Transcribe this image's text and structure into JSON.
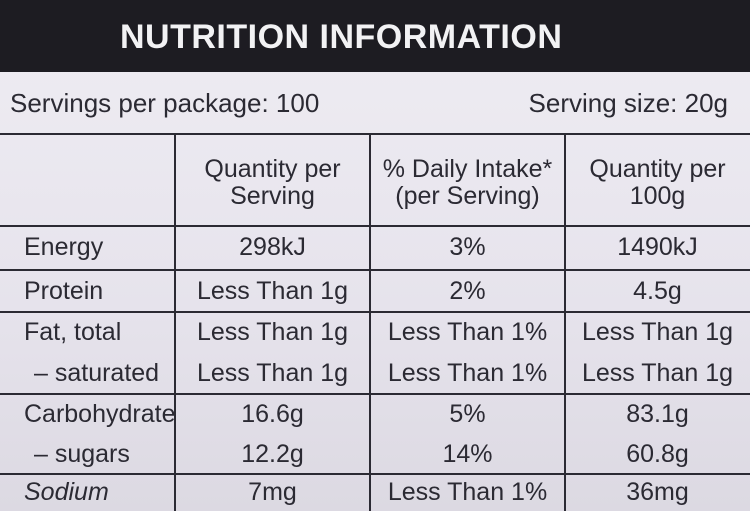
{
  "header": {
    "title": "NUTRITION INFORMATION"
  },
  "servings": {
    "per_package": "Servings per package: 100",
    "size": "Serving size: 20g"
  },
  "table": {
    "columns": [
      "Quantity per Serving",
      "% Daily Intake* (per Serving)",
      "Quantity per 100g"
    ],
    "rows": [
      {
        "label": "Energy",
        "values": [
          "298kJ",
          "3%",
          "1490kJ"
        ]
      },
      {
        "label": "Protein",
        "values": [
          "Less Than 1g",
          "2%",
          "4.5g"
        ]
      },
      {
        "label": "Fat, total",
        "values": [
          "Less Than 1g",
          "Less Than 1%",
          "Less Than 1g"
        ]
      },
      {
        "label": "– saturated",
        "values": [
          "Less Than 1g",
          "Less Than 1%",
          "Less Than 1g"
        ]
      },
      {
        "label": "Carbohydrate",
        "values": [
          "16.6g",
          "5%",
          "83.1g"
        ]
      },
      {
        "label": "– sugars",
        "values": [
          "12.2g",
          "14%",
          "60.8g"
        ]
      },
      {
        "label": "Sodium",
        "values": [
          "7mg",
          "Less Than 1%",
          "36mg"
        ]
      }
    ]
  }
}
